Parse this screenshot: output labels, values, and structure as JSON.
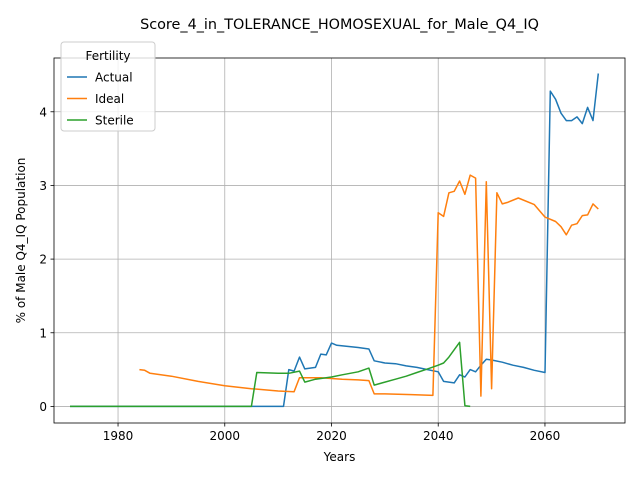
{
  "chart_data": {
    "type": "line",
    "title": "Score_4_in_TOLERANCE_HOMOSEXUAL_for_Male_Q4_IQ",
    "xlabel": "Years",
    "ylabel": "% of Male Q4_IQ Population",
    "xlim": [
      1968,
      2075
    ],
    "ylim": [
      -0.225,
      4.73
    ],
    "xticks": [
      1980,
      2000,
      2020,
      2040,
      2060
    ],
    "yticks": [
      0,
      1,
      2,
      3,
      4
    ],
    "grid": true,
    "legend": {
      "title": "Fertility",
      "position": "top-left"
    },
    "series": [
      {
        "name": "Actual",
        "color": "#1f77b4",
        "points": [
          [
            1971,
            0
          ],
          [
            1990,
            0
          ],
          [
            2011,
            0
          ],
          [
            2012,
            0.5
          ],
          [
            2013,
            0.48
          ],
          [
            2014,
            0.67
          ],
          [
            2015,
            0.51
          ],
          [
            2017,
            0.53
          ],
          [
            2018,
            0.71
          ],
          [
            2019,
            0.7
          ],
          [
            2020,
            0.86
          ],
          [
            2021,
            0.83
          ],
          [
            2025,
            0.8
          ],
          [
            2027,
            0.78
          ],
          [
            2028,
            0.62
          ],
          [
            2030,
            0.59
          ],
          [
            2032,
            0.58
          ],
          [
            2034,
            0.55
          ],
          [
            2036,
            0.53
          ],
          [
            2038,
            0.5
          ],
          [
            2040,
            0.47
          ],
          [
            2041,
            0.34
          ],
          [
            2043,
            0.32
          ],
          [
            2044,
            0.43
          ],
          [
            2045,
            0.4
          ],
          [
            2046,
            0.5
          ],
          [
            2047,
            0.47
          ],
          [
            2048,
            0.56
          ],
          [
            2049,
            0.64
          ],
          [
            2050,
            0.63
          ],
          [
            2052,
            0.6
          ],
          [
            2054,
            0.56
          ],
          [
            2056,
            0.53
          ],
          [
            2058,
            0.49
          ],
          [
            2060,
            0.46
          ],
          [
            2061,
            4.28
          ],
          [
            2062,
            4.17
          ],
          [
            2063,
            3.98
          ],
          [
            2064,
            3.88
          ],
          [
            2065,
            3.88
          ],
          [
            2066,
            3.93
          ],
          [
            2067,
            3.84
          ],
          [
            2068,
            4.06
          ],
          [
            2069,
            3.88
          ],
          [
            2070,
            4.52
          ]
        ]
      },
      {
        "name": "Ideal",
        "color": "#ff7f0e",
        "points": [
          [
            1984,
            0.5
          ],
          [
            1985,
            0.49
          ],
          [
            1986,
            0.45
          ],
          [
            1990,
            0.41
          ],
          [
            1995,
            0.34
          ],
          [
            2000,
            0.28
          ],
          [
            2005,
            0.24
          ],
          [
            2010,
            0.21
          ],
          [
            2013,
            0.2
          ],
          [
            2014,
            0.39
          ],
          [
            2018,
            0.39
          ],
          [
            2022,
            0.37
          ],
          [
            2025,
            0.36
          ],
          [
            2027,
            0.35
          ],
          [
            2028,
            0.17
          ],
          [
            2030,
            0.17
          ],
          [
            2035,
            0.16
          ],
          [
            2039,
            0.15
          ],
          [
            2040,
            2.63
          ],
          [
            2041,
            2.58
          ],
          [
            2042,
            2.9
          ],
          [
            2043,
            2.92
          ],
          [
            2044,
            3.06
          ],
          [
            2045,
            2.88
          ],
          [
            2046,
            3.14
          ],
          [
            2047,
            3.1
          ],
          [
            2048,
            0.14
          ],
          [
            2049,
            3.05
          ],
          [
            2050,
            0.24
          ],
          [
            2051,
            2.9
          ],
          [
            2052,
            2.75
          ],
          [
            2053,
            2.77
          ],
          [
            2055,
            2.83
          ],
          [
            2058,
            2.74
          ],
          [
            2060,
            2.57
          ],
          [
            2062,
            2.51
          ],
          [
            2063,
            2.44
          ],
          [
            2064,
            2.33
          ],
          [
            2065,
            2.46
          ],
          [
            2066,
            2.48
          ],
          [
            2067,
            2.59
          ],
          [
            2068,
            2.6
          ],
          [
            2069,
            2.75
          ],
          [
            2070,
            2.68
          ]
        ]
      },
      {
        "name": "Sterile",
        "color": "#2ca02c",
        "points": [
          [
            1971,
            0
          ],
          [
            1990,
            0
          ],
          [
            2005,
            0
          ],
          [
            2006,
            0.46
          ],
          [
            2010,
            0.45
          ],
          [
            2012,
            0.45
          ],
          [
            2014,
            0.48
          ],
          [
            2015,
            0.33
          ],
          [
            2017,
            0.37
          ],
          [
            2020,
            0.4
          ],
          [
            2022,
            0.43
          ],
          [
            2025,
            0.47
          ],
          [
            2027,
            0.52
          ],
          [
            2028,
            0.29
          ],
          [
            2030,
            0.33
          ],
          [
            2032,
            0.37
          ],
          [
            2034,
            0.41
          ],
          [
            2036,
            0.46
          ],
          [
            2038,
            0.51
          ],
          [
            2040,
            0.56
          ],
          [
            2041,
            0.59
          ],
          [
            2042,
            0.67
          ],
          [
            2044,
            0.87
          ],
          [
            2045,
            0.01
          ],
          [
            2046,
            0
          ]
        ]
      }
    ]
  }
}
